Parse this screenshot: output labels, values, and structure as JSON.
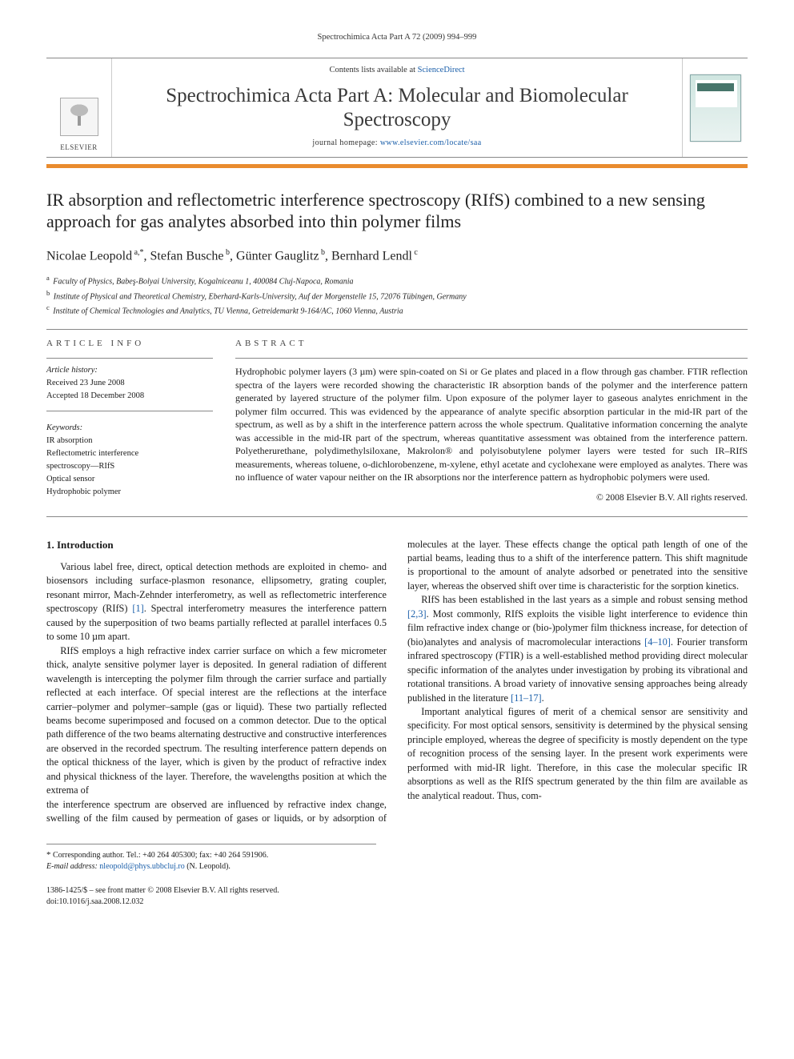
{
  "running_head": "Spectrochimica Acta Part A 72 (2009) 994–999",
  "masthead": {
    "publisher_logo_text": "ELSEVIER",
    "contents_prefix": "Contents lists available at ",
    "contents_link_text": "ScienceDirect",
    "journal_title": "Spectrochimica Acta Part A: Molecular and Biomolecular Spectroscopy",
    "homepage_prefix": "journal homepage: ",
    "homepage_link_text": "www.elsevier.com/locate/saa"
  },
  "colors": {
    "orange_bar": "#e98b2e",
    "link": "#1b5faa",
    "rule": "#888888"
  },
  "article": {
    "title": "IR absorption and reflectometric interference spectroscopy (RIfS) combined to a new sensing approach for gas analytes absorbed into thin polymer films",
    "authors_html": "Nicolae Leopold<sup> a,*</sup>, Stefan Busche<sup> b</sup>, Günter Gauglitz<sup> b</sup>, Bernhard Lendl<sup> c</sup>",
    "affiliations": [
      {
        "key": "a",
        "text": "Faculty of Physics, Babeş-Bolyai University, Kogalniceanu 1, 400084 Cluj-Napoca, Romania"
      },
      {
        "key": "b",
        "text": "Institute of Physical and Theoretical Chemistry, Eberhard-Karls-University, Auf der Morgenstelle 15, 72076 Tübingen, Germany"
      },
      {
        "key": "c",
        "text": "Institute of Chemical Technologies and Analytics, TU Vienna, Getreidemarkt 9-164/AC, 1060 Vienna, Austria"
      }
    ]
  },
  "info": {
    "section_head": "ARTICLE INFO",
    "history_label": "Article history:",
    "history_lines": [
      "Received 23 June 2008",
      "Accepted 18 December 2008"
    ],
    "keywords_label": "Keywords:",
    "keywords": [
      "IR absorption",
      "Reflectometric interference",
      "spectroscopy—RIfS",
      "Optical sensor",
      "Hydrophobic polymer"
    ]
  },
  "abstract": {
    "section_head": "ABSTRACT",
    "body": "Hydrophobic polymer layers (3 µm) were spin-coated on Si or Ge plates and placed in a flow through gas chamber. FTIR reflection spectra of the layers were recorded showing the characteristic IR absorption bands of the polymer and the interference pattern generated by layered structure of the polymer film. Upon exposure of the polymer layer to gaseous analytes enrichment in the polymer film occurred. This was evidenced by the appearance of analyte specific absorption particular in the mid-IR part of the spectrum, as well as by a shift in the interference pattern across the whole spectrum. Qualitative information concerning the analyte was accessible in the mid-IR part of the spectrum, whereas quantitative assessment was obtained from the interference pattern. Polyetherurethane, polydimethylsiloxane, Makrolon® and polyisobutylene polymer layers were tested for such IR–RIfS measurements, whereas toluene, o-dichlorobenzene, m-xylene, ethyl acetate and cyclohexane were employed as analytes. There was no influence of water vapour neither on the IR absorptions nor the interference pattern as hydrophobic polymers were used.",
    "copyright": "© 2008 Elsevier B.V. All rights reserved."
  },
  "body": {
    "heading": "1.  Introduction",
    "p1": "Various label free, direct, optical detection methods are exploited in chemo- and biosensors including surface-plasmon resonance, ellipsometry, grating coupler, resonant mirror, Mach-Zehnder interferometry, as well as reflectometric interference spectroscopy (RIfS) [1]. Spectral interferometry measures the interference pattern caused by the superposition of two beams partially reflected at parallel interfaces 0.5 to some 10 µm apart.",
    "p2": "RIfS employs a high refractive index carrier surface on which a few micrometer thick, analyte sensitive polymer layer is deposited. In general radiation of different wavelength is intercepting the polymer film through the carrier surface and partially reflected at each interface. Of special interest are the reflections at the interface carrier–polymer and polymer–sample (gas or liquid). These two partially reflected beams become superimposed and focused on a common detector. Due to the optical path difference of the two beams alternating destructive and constructive interferences are observed in the recorded spectrum. The resulting interference pattern depends on the optical thickness of the layer, which is given by the product of refractive index and physical thickness of the layer. Therefore, the wavelengths position at which the extrema of",
    "p3": "the interference spectrum are observed are influenced by refractive index change, swelling of the film caused by permeation of gases or liquids, or by adsorption of molecules at the layer. These effects change the optical path length of one of the partial beams, leading thus to a shift of the interference pattern. This shift magnitude is proportional to the amount of analyte adsorbed or penetrated into the sensitive layer, whereas the observed shift over time is characteristic for the sorption kinetics.",
    "p4": "RIfS has been established in the last years as a simple and robust sensing method [2,3]. Most commonly, RIfS exploits the visible light interference to evidence thin film refractive index change or (bio-)polymer film thickness increase, for detection of (bio)analytes and analysis of macromolecular interactions [4–10]. Fourier transform infrared spectroscopy (FTIR) is a well-established method providing direct molecular specific information of the analytes under investigation by probing its vibrational and rotational transitions. A broad variety of innovative sensing approaches being already published in the literature [11–17].",
    "p5": "Important analytical figures of merit of a chemical sensor are sensitivity and specificity. For most optical sensors, sensitivity is determined by the physical sensing principle employed, whereas the degree of specificity is mostly dependent on the type of recognition process of the sensing layer. In the present work experiments were performed with mid-IR light. Therefore, in this case the molecular specific IR absorptions as well as the RIfS spectrum generated by the thin film are available as the analytical readout. Thus, com-"
  },
  "footnote": {
    "corr_label": "Corresponding author. Tel.: +40 264 405300; fax: +40 264 591906.",
    "email_label": "E-mail address:",
    "email": "nleopold@phys.ubbcluj.ro",
    "email_who": "(N. Leopold)."
  },
  "doi": {
    "line1": "1386-1425/$ – see front matter © 2008 Elsevier B.V. All rights reserved.",
    "line2": "doi:10.1016/j.saa.2008.12.032"
  }
}
